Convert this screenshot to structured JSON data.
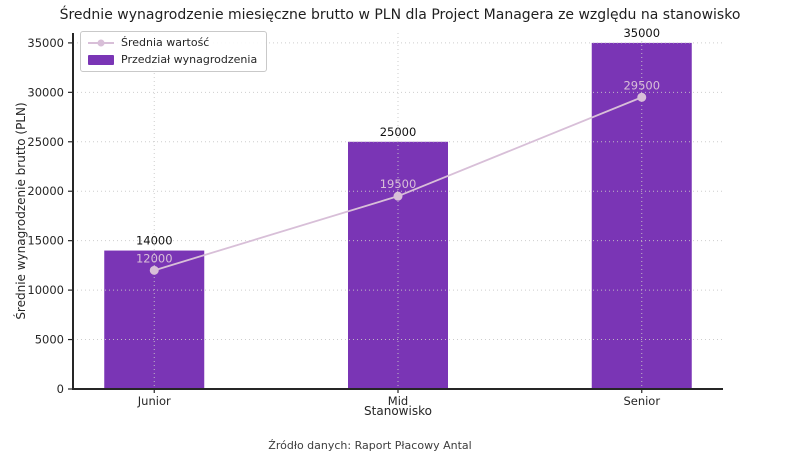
{
  "title": "Średnie wynagrodzenie miesięczne brutto w PLN dla Project Managera ze względu na stanowisko",
  "source_note": "Źródło danych: Raport Płacowy Antal",
  "legend": {
    "avg_label": "Średnia wartość",
    "range_label": "Przedział wynagrodzenia"
  },
  "colors": {
    "bar": "#7a35b5",
    "line": "#d8bfd8",
    "grid": "#c8c8c8",
    "axis": "#262626",
    "bar_value_label": "#111111",
    "tick_label": "#262626"
  },
  "chart_data": {
    "type": "bar",
    "title": "Średnie wynagrodzenie miesięczne brutto w PLN dla Project Managera ze względu na stanowisko",
    "categories": [
      "Junior",
      "Mid",
      "Senior"
    ],
    "series": [
      {
        "name": "Przedział wynagrodzenia",
        "type": "bar",
        "values": [
          14000,
          25000,
          35000
        ],
        "color": "#7a35b5"
      },
      {
        "name": "Średnia wartość",
        "type": "line",
        "values": [
          12000,
          19500,
          29500
        ],
        "color": "#d8bfd8"
      }
    ],
    "xlabel": "Stanowisko",
    "ylabel": "Średnie wynagrodzenie brutto (PLN)",
    "ylim": [
      0,
      36000
    ],
    "yticks": [
      0,
      5000,
      10000,
      15000,
      20000,
      25000,
      30000,
      35000
    ],
    "grid": true,
    "grid_style": "dotted",
    "legend_position": "upper left",
    "annotation": "Źródło danych: Raport Płacowy Antal"
  }
}
